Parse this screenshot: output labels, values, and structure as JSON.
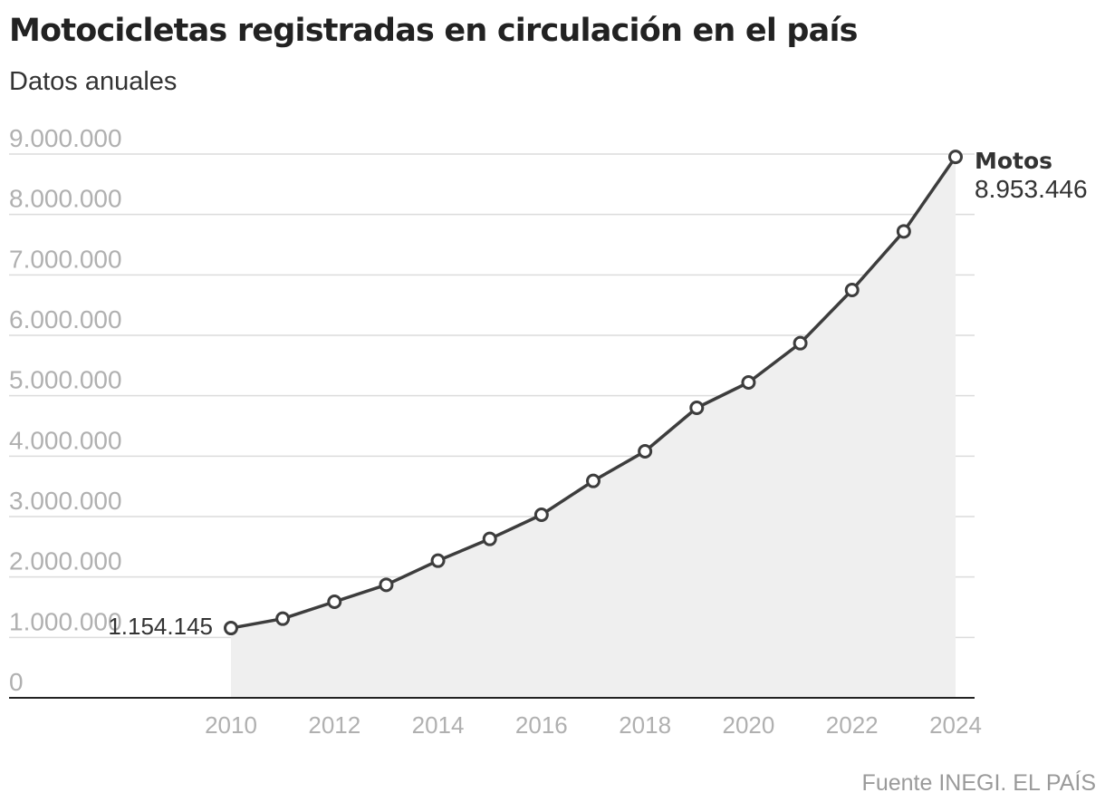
{
  "header": {
    "title": "Motocicletas registradas en circulación en el país",
    "subtitle": "Datos anuales"
  },
  "footer": {
    "source": "Fuente INEGI. EL PAÍS"
  },
  "colors": {
    "line": "#3d3d3d",
    "area": "#efefef",
    "grid": "#dcdcdc",
    "axis": "#222222",
    "marker_fill": "#ffffff",
    "tick_text": "#b0b0b0"
  },
  "chart_data": {
    "type": "area",
    "title": "Motocicletas registradas en circulación en el país",
    "subtitle": "Datos anuales",
    "xlabel": "",
    "ylabel": "",
    "x": [
      2010,
      2011,
      2012,
      2013,
      2014,
      2015,
      2016,
      2017,
      2018,
      2019,
      2020,
      2021,
      2022,
      2023,
      2024
    ],
    "series": [
      {
        "name": "Motos",
        "values": [
          1154145,
          1310000,
          1590000,
          1870000,
          2270000,
          2630000,
          3030000,
          3590000,
          4080000,
          4800000,
          5220000,
          5870000,
          6750000,
          7720000,
          8953446
        ]
      }
    ],
    "ylim": [
      0,
      9000000
    ],
    "yticks": [
      {
        "value": 0,
        "label": "0"
      },
      {
        "value": 1000000,
        "label": "1.000.000"
      },
      {
        "value": 2000000,
        "label": "2.000.000"
      },
      {
        "value": 3000000,
        "label": "3.000.000"
      },
      {
        "value": 4000000,
        "label": "4.000.000"
      },
      {
        "value": 5000000,
        "label": "5.000.000"
      },
      {
        "value": 6000000,
        "label": "6.000.000"
      },
      {
        "value": 7000000,
        "label": "7.000.000"
      },
      {
        "value": 8000000,
        "label": "8.000.000"
      },
      {
        "value": 9000000,
        "label": "9.000.000"
      }
    ],
    "xticks": [
      {
        "value": 2010,
        "label": "2010"
      },
      {
        "value": 2012,
        "label": "2012"
      },
      {
        "value": 2014,
        "label": "2014"
      },
      {
        "value": 2016,
        "label": "2016"
      },
      {
        "value": 2018,
        "label": "2018"
      },
      {
        "value": 2020,
        "label": "2020"
      },
      {
        "value": 2022,
        "label": "2022"
      },
      {
        "value": 2024,
        "label": "2024"
      }
    ],
    "annotations": {
      "start_label": "1.154.145",
      "end_name": "Motos",
      "end_value": "8.953.446"
    },
    "grid": true,
    "legend": "none"
  }
}
